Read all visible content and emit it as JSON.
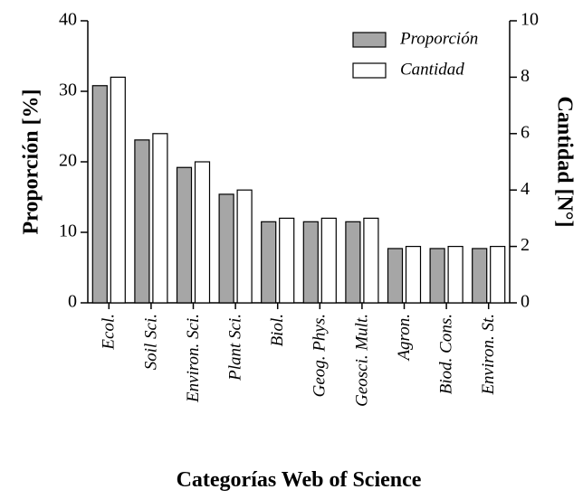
{
  "chart_data": {
    "type": "bar",
    "x_label": "Categorías Web of Science",
    "y_label": "Proporción [%]",
    "y2_label": "Cantidad [N°]",
    "categories": [
      "Ecol.",
      "Soil Sci.",
      "Environ. Sci.",
      "Plant Sci.",
      "Biol.",
      "Geog. Phys.",
      "Geosci. Mult.",
      "Agron.",
      "Biod. Cons.",
      "Environ. St."
    ],
    "series": [
      {
        "name": "Proporción",
        "color": "#a6a6a6",
        "values": [
          30.8,
          23.1,
          19.2,
          15.4,
          11.5,
          11.5,
          11.5,
          7.7,
          7.7,
          7.7
        ]
      },
      {
        "name": "Cantidad",
        "color": "#ffffff",
        "axis": "y2",
        "values": [
          8,
          6,
          5,
          4,
          3,
          3,
          3,
          2,
          2,
          2
        ]
      }
    ],
    "ylim": [
      0,
      40
    ],
    "yticks": [
      0,
      10,
      20,
      30,
      40
    ],
    "y2lim": [
      0,
      10
    ],
    "y2ticks": [
      0,
      2,
      4,
      6,
      8,
      10
    ],
    "legend": "upper right"
  }
}
